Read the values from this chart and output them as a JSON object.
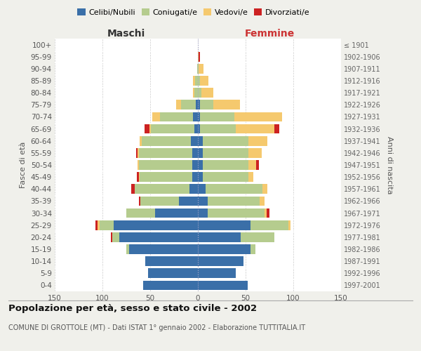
{
  "age_groups": [
    "100+",
    "95-99",
    "90-94",
    "85-89",
    "80-84",
    "75-79",
    "70-74",
    "65-69",
    "60-64",
    "55-59",
    "50-54",
    "45-49",
    "40-44",
    "35-39",
    "30-34",
    "25-29",
    "20-24",
    "15-19",
    "10-14",
    "5-9",
    "0-4"
  ],
  "birth_years": [
    "≤ 1901",
    "1902-1906",
    "1907-1911",
    "1912-1916",
    "1917-1921",
    "1922-1926",
    "1927-1931",
    "1932-1936",
    "1937-1941",
    "1942-1946",
    "1947-1951",
    "1952-1956",
    "1957-1961",
    "1962-1966",
    "1967-1971",
    "1972-1976",
    "1977-1981",
    "1982-1986",
    "1987-1991",
    "1992-1996",
    "1997-2001"
  ],
  "maschi_celibi": [
    0,
    0,
    0,
    0,
    0,
    2,
    5,
    4,
    7,
    6,
    6,
    6,
    9,
    20,
    45,
    88,
    82,
    72,
    55,
    52,
    57
  ],
  "maschi_coniugati": [
    0,
    0,
    1,
    3,
    4,
    16,
    35,
    45,
    52,
    56,
    56,
    55,
    57,
    40,
    30,
    15,
    8,
    3,
    0,
    0,
    0
  ],
  "maschi_vedovi": [
    0,
    0,
    0,
    2,
    1,
    5,
    8,
    2,
    2,
    1,
    1,
    1,
    0,
    0,
    0,
    2,
    0,
    0,
    0,
    0,
    0
  ],
  "maschi_divorziati": [
    0,
    0,
    0,
    0,
    0,
    0,
    0,
    5,
    0,
    2,
    0,
    2,
    4,
    2,
    0,
    2,
    1,
    0,
    0,
    0,
    0
  ],
  "femmine_nubili": [
    0,
    0,
    0,
    0,
    0,
    2,
    2,
    2,
    5,
    5,
    5,
    5,
    8,
    10,
    10,
    55,
    45,
    55,
    48,
    40,
    52
  ],
  "femmine_coniugate": [
    0,
    0,
    1,
    2,
    4,
    14,
    36,
    38,
    48,
    48,
    48,
    48,
    60,
    55,
    60,
    40,
    35,
    5,
    0,
    0,
    0
  ],
  "femmine_vedove": [
    0,
    1,
    5,
    9,
    12,
    28,
    50,
    40,
    20,
    14,
    8,
    5,
    5,
    5,
    2,
    2,
    0,
    0,
    0,
    0,
    0
  ],
  "femmine_divorziate": [
    0,
    1,
    0,
    0,
    0,
    0,
    0,
    5,
    0,
    0,
    3,
    0,
    0,
    0,
    3,
    0,
    0,
    0,
    0,
    0,
    0
  ],
  "colors": {
    "celibi_nubili": "#3a6fa8",
    "coniugati": "#b5cc8e",
    "vedovi": "#f5c96e",
    "divorziati": "#cc2222"
  },
  "xlim": 150,
  "title": "Popolazione per età, sesso e stato civile - 2002",
  "subtitle": "COMUNE DI GROTTOLE (MT) - Dati ISTAT 1° gennaio 2002 - Elaborazione TUTTITALIA.IT",
  "xlabel_left": "Maschi",
  "xlabel_right": "Femmine",
  "ylabel_left": "Fasce di età",
  "ylabel_right": "Anni di nascita",
  "bg_color": "#f0f0eb",
  "plot_bg": "#ffffff"
}
